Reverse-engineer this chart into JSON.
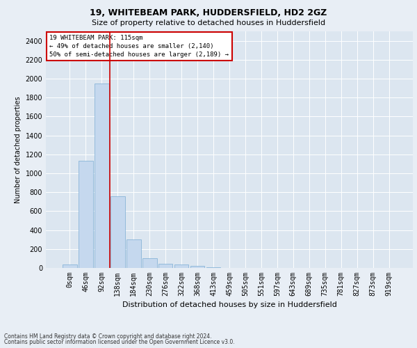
{
  "title1": "19, WHITEBEAM PARK, HUDDERSFIELD, HD2 2GZ",
  "title2": "Size of property relative to detached houses in Huddersfield",
  "xlabel": "Distribution of detached houses by size in Huddersfield",
  "ylabel": "Number of detached properties",
  "bar_color": "#c5d8ee",
  "bar_edge_color": "#7badd4",
  "background_color": "#dce6f0",
  "grid_color": "#ffffff",
  "annotation_box_color": "#cc0000",
  "vline_color": "#cc0000",
  "fig_background": "#e8eef5",
  "categories": [
    "0sqm",
    "46sqm",
    "92sqm",
    "138sqm",
    "184sqm",
    "230sqm",
    "276sqm",
    "322sqm",
    "368sqm",
    "413sqm",
    "459sqm",
    "505sqm",
    "551sqm",
    "597sqm",
    "643sqm",
    "689sqm",
    "735sqm",
    "781sqm",
    "827sqm",
    "873sqm",
    "919sqm"
  ],
  "bar_values": [
    35,
    1130,
    1950,
    760,
    300,
    105,
    45,
    35,
    20,
    5,
    2,
    0,
    0,
    0,
    0,
    0,
    0,
    0,
    0,
    0,
    0
  ],
  "ylim": [
    0,
    2500
  ],
  "yticks": [
    0,
    200,
    400,
    600,
    800,
    1000,
    1200,
    1400,
    1600,
    1800,
    2000,
    2200,
    2400
  ],
  "vline_x": 2.5,
  "annotation_text": "19 WHITEBEAM PARK: 115sqm\n← 49% of detached houses are smaller (2,140)\n50% of semi-detached houses are larger (2,189) →",
  "footer1": "Contains HM Land Registry data © Crown copyright and database right 2024.",
  "footer2": "Contains public sector information licensed under the Open Government Licence v3.0.",
  "title1_fontsize": 9,
  "title2_fontsize": 8,
  "xlabel_fontsize": 8,
  "ylabel_fontsize": 7,
  "tick_fontsize": 7,
  "ann_fontsize": 6.5,
  "footer_fontsize": 5.5
}
